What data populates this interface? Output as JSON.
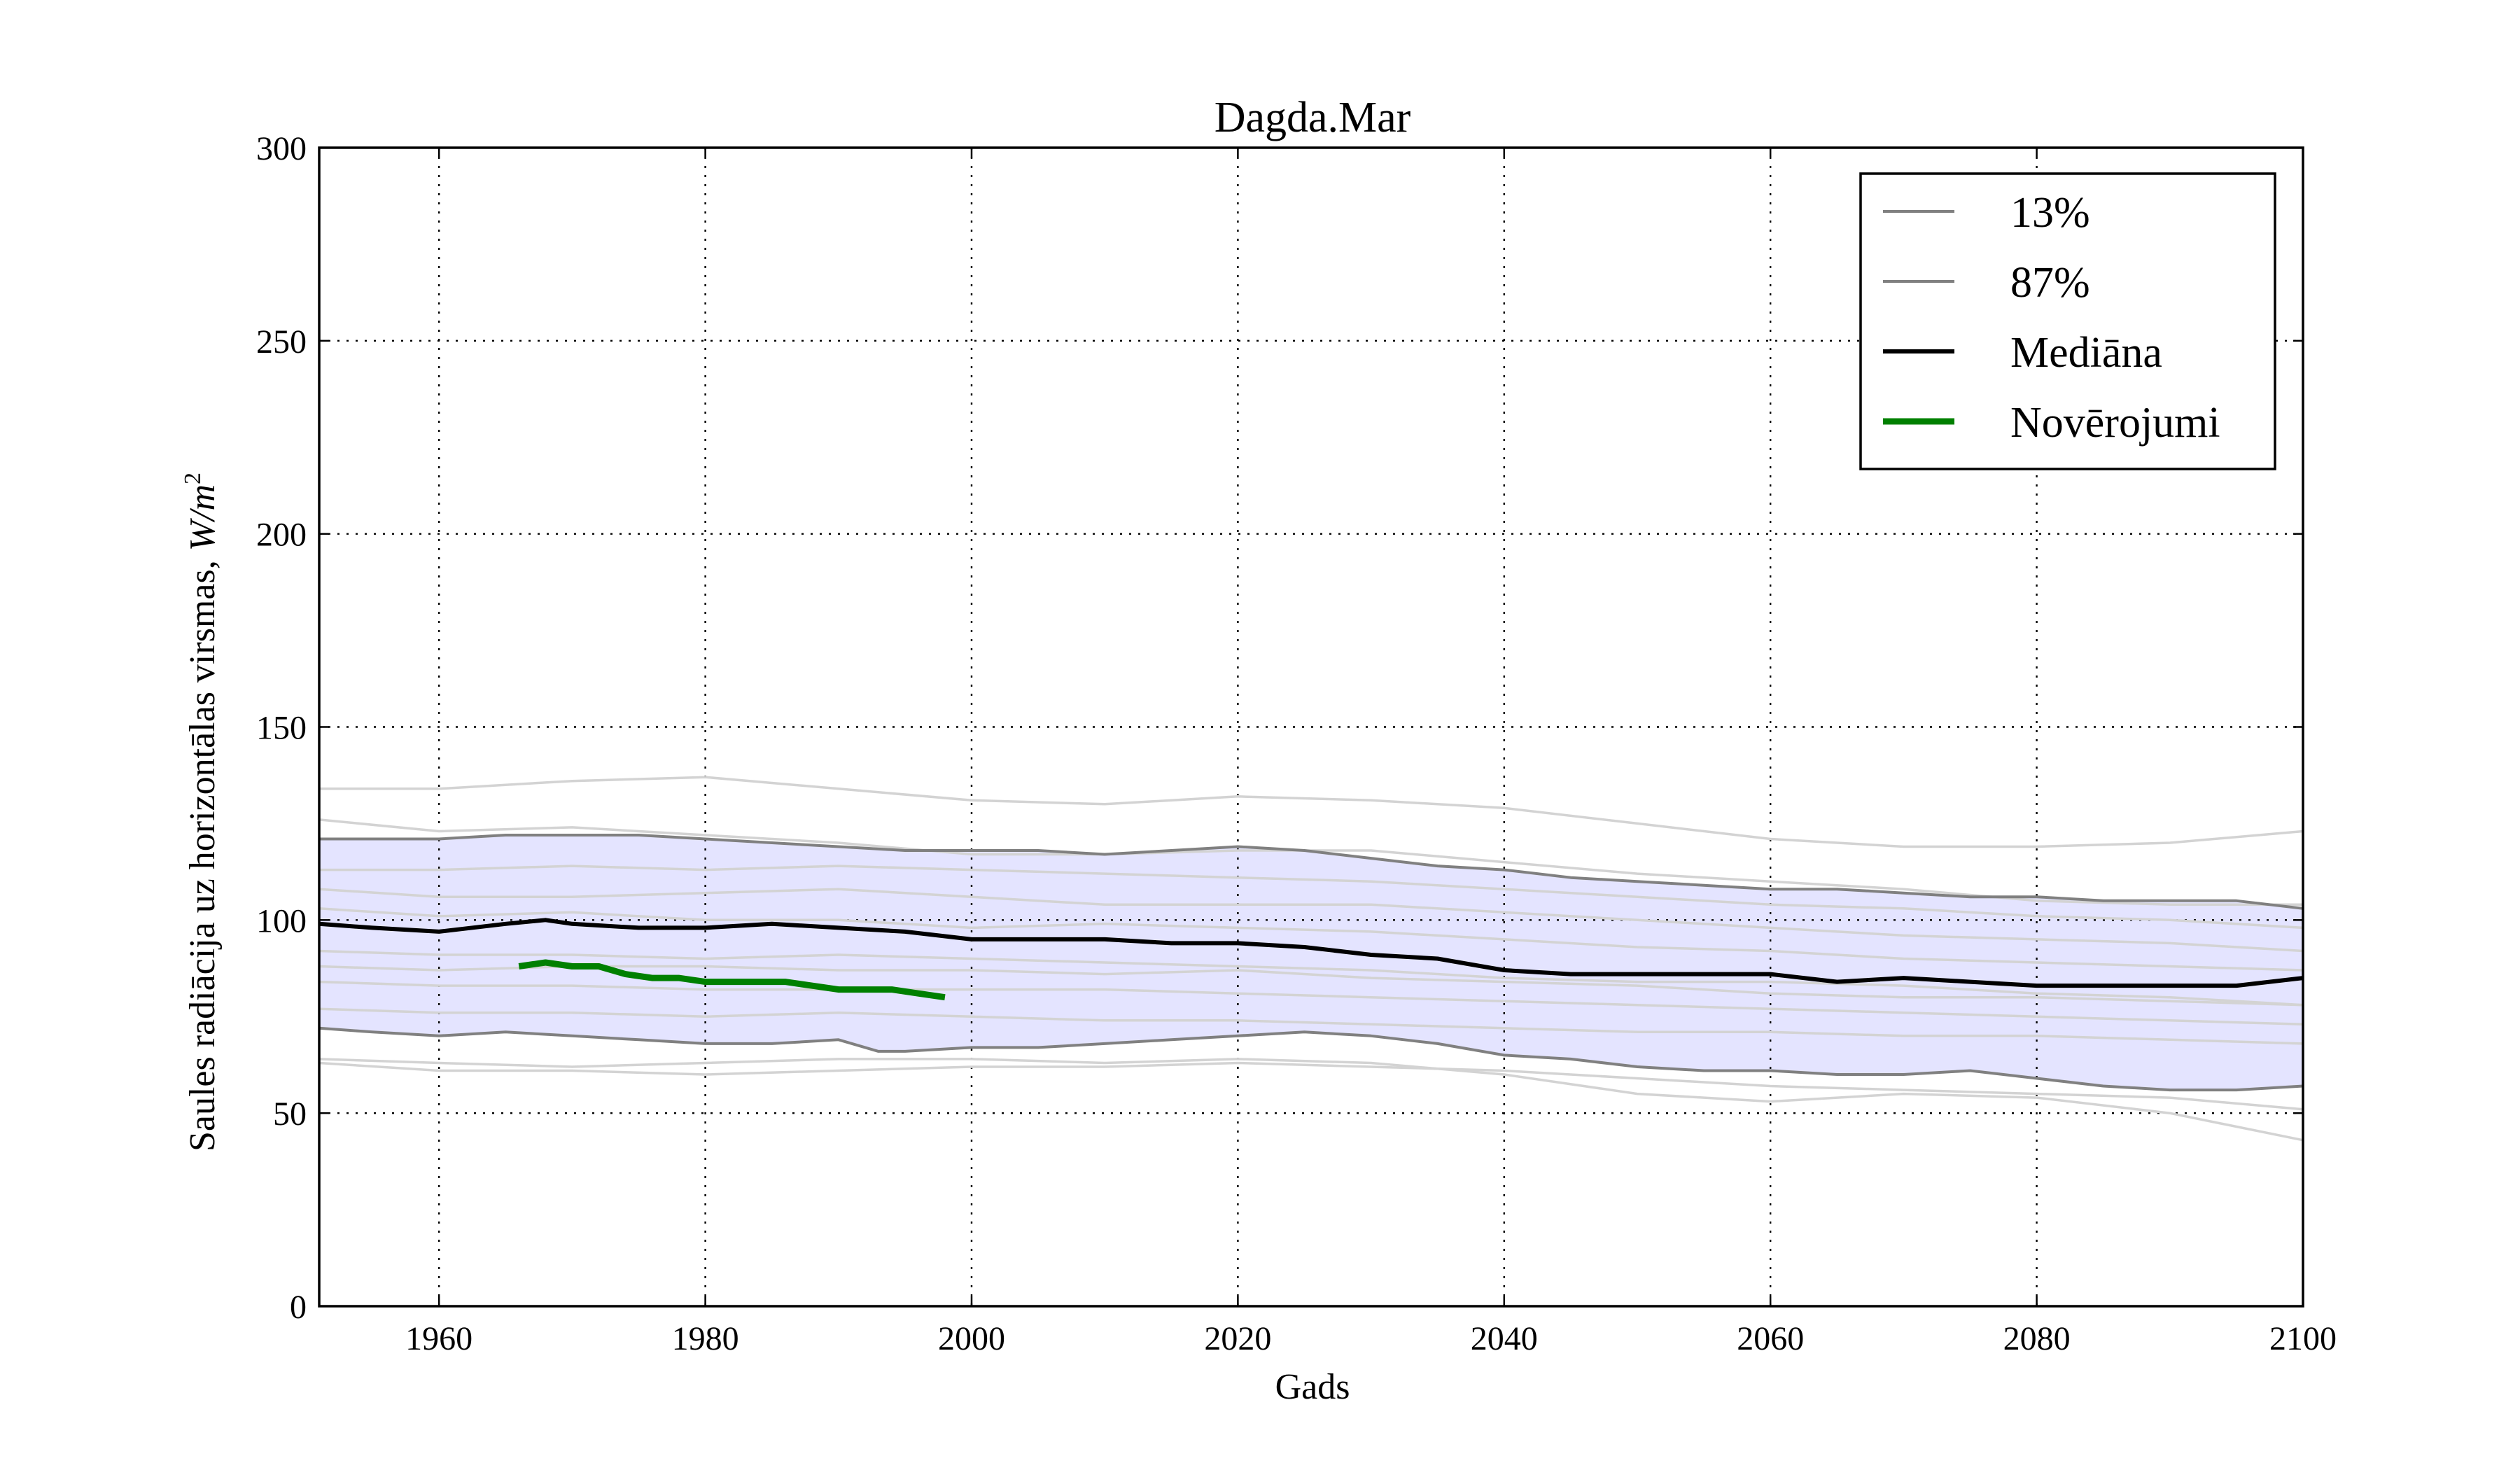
{
  "chart_data": {
    "type": "line",
    "title": "Dagda.Mar",
    "xlabel": "Gads",
    "ylabel": "Saules radiācija uz horizontālas virsmas, W/m²",
    "ylabel_text": "Saules radiācija uz horizontālas virsmas, ",
    "ylabel_unit": "W/m",
    "ylabel_exp": "2",
    "xlim": [
      1951,
      2100
    ],
    "ylim": [
      0,
      300
    ],
    "x_ticks": [
      1960,
      1980,
      2000,
      2020,
      2040,
      2060,
      2080,
      2100
    ],
    "y_ticks": [
      0,
      50,
      100,
      150,
      200,
      250,
      300
    ],
    "grid": true,
    "legend_position": "top-right",
    "band": {
      "color": "#e4e4ff",
      "lower_series": "13%",
      "upper_series": "87%"
    },
    "series": [
      {
        "name": "13%",
        "color": "#808080",
        "x": [
          1951,
          1955,
          1960,
          1965,
          1970,
          1975,
          1980,
          1985,
          1990,
          1993,
          1995,
          2000,
          2005,
          2010,
          2015,
          2020,
          2025,
          2030,
          2035,
          2040,
          2045,
          2050,
          2055,
          2060,
          2065,
          2070,
          2075,
          2080,
          2085,
          2090,
          2095,
          2100
        ],
        "y": [
          72,
          71,
          70,
          71,
          70,
          69,
          68,
          68,
          69,
          66,
          66,
          67,
          67,
          68,
          69,
          70,
          71,
          70,
          68,
          65,
          64,
          62,
          61,
          61,
          60,
          60,
          61,
          59,
          57,
          56,
          56,
          57
        ]
      },
      {
        "name": "87%",
        "color": "#808080",
        "x": [
          1951,
          1955,
          1960,
          1965,
          1970,
          1975,
          1980,
          1985,
          1990,
          1995,
          2000,
          2005,
          2010,
          2015,
          2020,
          2025,
          2030,
          2035,
          2040,
          2045,
          2050,
          2055,
          2060,
          2065,
          2070,
          2075,
          2080,
          2085,
          2090,
          2095,
          2100
        ],
        "y": [
          121,
          121,
          121,
          122,
          122,
          122,
          121,
          120,
          119,
          118,
          118,
          118,
          117,
          118,
          119,
          118,
          116,
          114,
          113,
          111,
          110,
          109,
          108,
          108,
          107,
          106,
          106,
          105,
          105,
          105,
          103
        ]
      },
      {
        "name": "Mediāna",
        "color": "#000000",
        "x": [
          1951,
          1955,
          1960,
          1965,
          1968,
          1970,
          1975,
          1980,
          1985,
          1990,
          1995,
          2000,
          2005,
          2010,
          2015,
          2020,
          2025,
          2030,
          2035,
          2040,
          2045,
          2050,
          2055,
          2060,
          2065,
          2070,
          2075,
          2080,
          2085,
          2090,
          2095,
          2100
        ],
        "y": [
          99,
          98,
          97,
          99,
          100,
          99,
          98,
          98,
          99,
          98,
          97,
          95,
          95,
          95,
          94,
          94,
          93,
          91,
          90,
          87,
          86,
          86,
          86,
          86,
          84,
          85,
          84,
          83,
          83,
          83,
          83,
          85
        ]
      },
      {
        "name": "Novērojumi",
        "color": "#008000",
        "x": [
          1966,
          1968,
          1970,
          1972,
          1974,
          1976,
          1978,
          1980,
          1982,
          1984,
          1986,
          1988,
          1990,
          1992,
          1994,
          1996,
          1998
        ],
        "y": [
          88,
          89,
          88,
          88,
          86,
          85,
          85,
          84,
          84,
          84,
          84,
          83,
          82,
          82,
          82,
          81,
          80
        ]
      }
    ],
    "ensemble_members": [
      {
        "color": "#d3d3d3",
        "x": [
          1951,
          1960,
          1970,
          1980,
          1990,
          2000,
          2010,
          2020,
          2030,
          2040,
          2050,
          2060,
          2070,
          2080,
          2090,
          2100
        ],
        "y": [
          134,
          134,
          136,
          137,
          134,
          131,
          130,
          132,
          131,
          129,
          125,
          121,
          119,
          119,
          120,
          123
        ]
      },
      {
        "color": "#d3d3d3",
        "x": [
          1951,
          1960,
          1970,
          1980,
          1990,
          2000,
          2010,
          2020,
          2030,
          2040,
          2050,
          2060,
          2070,
          2080,
          2090,
          2100
        ],
        "y": [
          126,
          123,
          124,
          122,
          120,
          117,
          117,
          118,
          118,
          115,
          112,
          110,
          108,
          105,
          104,
          104
        ]
      },
      {
        "color": "#d3d3d3",
        "x": [
          1951,
          1960,
          1970,
          1980,
          1990,
          2000,
          2010,
          2020,
          2030,
          2040,
          2050,
          2060,
          2070,
          2080,
          2090,
          2100
        ],
        "y": [
          113,
          113,
          114,
          113,
          114,
          113,
          112,
          111,
          110,
          108,
          106,
          104,
          103,
          101,
          100,
          98
        ]
      },
      {
        "color": "#d3d3d3",
        "x": [
          1951,
          1960,
          1970,
          1980,
          1990,
          2000,
          2010,
          2020,
          2030,
          2040,
          2050,
          2060,
          2070,
          2080,
          2090,
          2100
        ],
        "y": [
          108,
          106,
          106,
          107,
          108,
          106,
          104,
          104,
          104,
          102,
          100,
          98,
          96,
          95,
          94,
          92
        ]
      },
      {
        "color": "#d3d3d3",
        "x": [
          1951,
          1960,
          1970,
          1980,
          1990,
          2000,
          2010,
          2020,
          2030,
          2040,
          2050,
          2060,
          2070,
          2080,
          2090,
          2100
        ],
        "y": [
          103,
          101,
          102,
          100,
          100,
          98,
          99,
          98,
          97,
          95,
          93,
          92,
          90,
          89,
          88,
          87
        ]
      },
      {
        "color": "#d3d3d3",
        "x": [
          1951,
          1960,
          1970,
          1980,
          1990,
          2000,
          2010,
          2020,
          2030,
          2040,
          2050,
          2060,
          2070,
          2080,
          2090,
          2100
        ],
        "y": [
          92,
          91,
          91,
          90,
          91,
          90,
          89,
          88,
          87,
          85,
          84,
          84,
          83,
          81,
          80,
          78
        ]
      },
      {
        "color": "#d3d3d3",
        "x": [
          1951,
          1960,
          1970,
          1980,
          1990,
          2000,
          2010,
          2020,
          2030,
          2040,
          2050,
          2060,
          2070,
          2080,
          2090,
          2100
        ],
        "y": [
          88,
          87,
          88,
          88,
          87,
          87,
          86,
          87,
          85,
          84,
          83,
          81,
          80,
          80,
          79,
          78
        ]
      },
      {
        "color": "#d3d3d3",
        "x": [
          1951,
          1960,
          1970,
          1980,
          1990,
          2000,
          2010,
          2020,
          2030,
          2040,
          2050,
          2060,
          2070,
          2080,
          2090,
          2100
        ],
        "y": [
          84,
          83,
          83,
          82,
          82,
          82,
          82,
          81,
          80,
          79,
          78,
          77,
          76,
          75,
          74,
          73
        ]
      },
      {
        "color": "#d3d3d3",
        "x": [
          1951,
          1960,
          1970,
          1980,
          1990,
          2000,
          2010,
          2020,
          2030,
          2040,
          2050,
          2060,
          2070,
          2080,
          2090,
          2100
        ],
        "y": [
          77,
          76,
          76,
          75,
          76,
          75,
          74,
          74,
          73,
          72,
          71,
          71,
          70,
          70,
          69,
          68
        ]
      },
      {
        "color": "#d3d3d3",
        "x": [
          1951,
          1960,
          1970,
          1980,
          1990,
          2000,
          2010,
          2020,
          2030,
          2040,
          2050,
          2060,
          2070,
          2080,
          2090,
          2100
        ],
        "y": [
          63,
          61,
          61,
          60,
          61,
          62,
          62,
          63,
          62,
          61,
          59,
          57,
          56,
          55,
          54,
          51
        ]
      },
      {
        "color": "#d3d3d3",
        "x": [
          1951,
          1960,
          1970,
          1980,
          1990,
          2000,
          2010,
          2020,
          2030,
          2040,
          2050,
          2060,
          2070,
          2080,
          2090,
          2100
        ],
        "y": [
          64,
          63,
          62,
          63,
          64,
          64,
          63,
          64,
          63,
          60,
          55,
          53,
          55,
          54,
          50,
          43
        ]
      }
    ]
  }
}
